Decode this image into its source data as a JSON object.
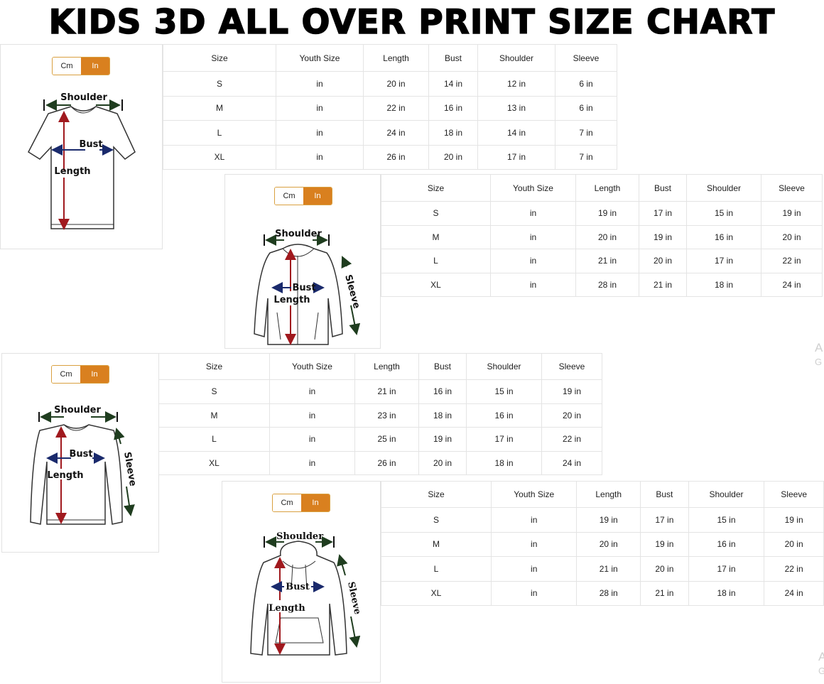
{
  "title": "KIDS 3D ALL OVER PRINT SIZE CHART",
  "colors": {
    "toggle_active": "#d9801f",
    "length_arrow": "#a0191e",
    "bust_arrow": "#1a2a6c",
    "shoulder_arrow": "#1f3d1f"
  },
  "unit_toggle": {
    "options": [
      "Cm",
      "In"
    ],
    "selected": "In"
  },
  "watermark": [
    {
      "line1": "A",
      "line2": "G"
    },
    {
      "line1": "A",
      "line2": "G"
    }
  ],
  "charts": [
    {
      "garment": "t-shirt",
      "labels": {
        "shoulder": "Shoulder",
        "bust": "Bust",
        "length": "Length"
      },
      "headers": [
        "Size",
        "Youth Size",
        "Length",
        "Bust",
        "Shoulder",
        "Sleeve"
      ],
      "rows": [
        [
          "S",
          "in",
          "20 in",
          "14 in",
          "12 in",
          "6 in"
        ],
        [
          "M",
          "in",
          "22 in",
          "16 in",
          "13 in",
          "6 in"
        ],
        [
          "L",
          "in",
          "24 in",
          "18 in",
          "14 in",
          "7 in"
        ],
        [
          "XL",
          "in",
          "26 in",
          "20 in",
          "17 in",
          "7 in"
        ]
      ]
    },
    {
      "garment": "zip-hoodie",
      "labels": {
        "shoulder": "Shoulder",
        "bust": "Bust",
        "length": "Length",
        "sleeve": "Sleeve"
      },
      "headers": [
        "Size",
        "Youth Size",
        "Length",
        "Bust",
        "Shoulder",
        "Sleeve"
      ],
      "rows": [
        [
          "S",
          "in",
          "19 in",
          "17 in",
          "15 in",
          "19 in"
        ],
        [
          "M",
          "in",
          "20 in",
          "19 in",
          "16 in",
          "20 in"
        ],
        [
          "L",
          "in",
          "21 in",
          "20 in",
          "17 in",
          "22 in"
        ],
        [
          "XL",
          "in",
          "28 in",
          "21 in",
          "18 in",
          "24 in"
        ]
      ]
    },
    {
      "garment": "long-sleeve",
      "labels": {
        "shoulder": "Shoulder",
        "bust": "Bust",
        "length": "Length",
        "sleeve": "Sleeve"
      },
      "headers": [
        "Size",
        "Youth Size",
        "Length",
        "Bust",
        "Shoulder",
        "Sleeve"
      ],
      "rows": [
        [
          "S",
          "in",
          "21 in",
          "16 in",
          "15 in",
          "19 in"
        ],
        [
          "M",
          "in",
          "23 in",
          "18 in",
          "16 in",
          "20 in"
        ],
        [
          "L",
          "in",
          "25 in",
          "19 in",
          "17 in",
          "22 in"
        ],
        [
          "XL",
          "in",
          "26 in",
          "20 in",
          "18 in",
          "24 in"
        ]
      ]
    },
    {
      "garment": "hoodie",
      "labels": {
        "shoulder": "Shoulder",
        "bust": "Bust",
        "length": "Length",
        "sleeve": "Sleeve"
      },
      "headers": [
        "Size",
        "Youth Size",
        "Length",
        "Bust",
        "Shoulder",
        "Sleeve"
      ],
      "rows": [
        [
          "S",
          "in",
          "19 in",
          "17 in",
          "15 in",
          "19 in"
        ],
        [
          "M",
          "in",
          "20 in",
          "19 in",
          "16 in",
          "20 in"
        ],
        [
          "L",
          "in",
          "21 in",
          "20 in",
          "17 in",
          "22 in"
        ],
        [
          "XL",
          "in",
          "28 in",
          "21 in",
          "18 in",
          "24 in"
        ]
      ]
    }
  ]
}
